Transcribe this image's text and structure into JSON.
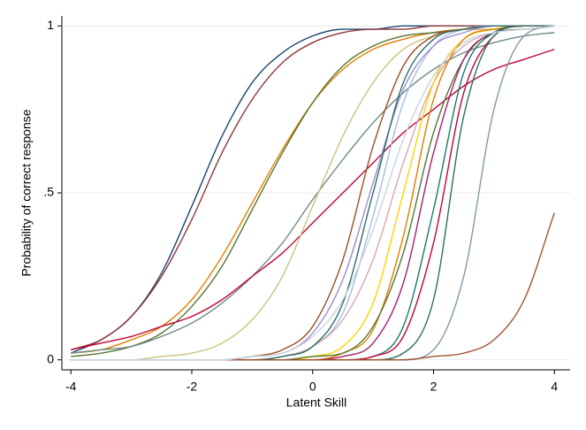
{
  "chart_data": {
    "type": "line",
    "xlabel": "Latent Skill",
    "ylabel": "Probability of correct response",
    "x": [
      -4,
      -3.5,
      -3,
      -2.5,
      -2,
      -1.5,
      -1,
      -0.5,
      0,
      0.5,
      1,
      1.5,
      2,
      2.5,
      3,
      3.5,
      4
    ],
    "xlim": [
      -4.15,
      4.26
    ],
    "ylim": [
      -0.03,
      1.03
    ],
    "xticks": [
      -4,
      -2,
      0,
      2,
      4
    ],
    "yticks": [
      0,
      {
        "value": 0.5,
        "label": ".5"
      },
      1
    ],
    "grid": true,
    "series": [
      {
        "color": "#1a476f",
        "values": [
          0.02,
          0.06,
          0.13,
          0.26,
          0.46,
          0.67,
          0.83,
          0.92,
          0.97,
          0.99,
          0.99,
          1,
          1,
          1,
          1,
          1,
          1
        ]
      },
      {
        "color": "#90353b",
        "values": [
          0.03,
          0.06,
          0.13,
          0.25,
          0.42,
          0.62,
          0.78,
          0.89,
          0.95,
          0.98,
          0.99,
          0.99,
          1,
          1,
          1,
          1,
          1
        ]
      },
      {
        "color": "#e37e00",
        "values": [
          0.02,
          0.03,
          0.06,
          0.1,
          0.18,
          0.31,
          0.47,
          0.63,
          0.77,
          0.87,
          0.93,
          0.96,
          0.98,
          0.99,
          0.99,
          1,
          1
        ]
      },
      {
        "color": "#55752f",
        "values": [
          0.01,
          0.02,
          0.04,
          0.08,
          0.16,
          0.28,
          0.45,
          0.62,
          0.77,
          0.88,
          0.94,
          0.97,
          0.98,
          0.99,
          1,
          1,
          1
        ]
      },
      {
        "color": "#6e8e84",
        "values": [
          0.02,
          0.03,
          0.04,
          0.07,
          0.11,
          0.17,
          0.25,
          0.35,
          0.48,
          0.6,
          0.71,
          0.8,
          0.87,
          0.92,
          0.95,
          0.97,
          0.98
        ]
      },
      {
        "color": "#c10534",
        "values": [
          0.03,
          0.05,
          0.07,
          0.1,
          0.13,
          0.18,
          0.25,
          0.32,
          0.41,
          0.5,
          0.59,
          0.68,
          0.75,
          0.82,
          0.87,
          0.9,
          0.93
        ]
      },
      {
        "color": "#cac27e",
        "values": [
          0,
          0,
          0,
          0.01,
          0.02,
          0.05,
          0.12,
          0.25,
          0.46,
          0.67,
          0.83,
          0.93,
          0.97,
          0.99,
          0.99,
          1,
          1
        ]
      },
      {
        "color": "#9c4e22",
        "values": [
          0,
          0,
          0,
          0,
          0,
          0,
          0.01,
          0.03,
          0.1,
          0.3,
          0.64,
          0.88,
          0.97,
          0.99,
          1,
          1,
          1
        ]
      },
      {
        "color": "#a3bde0",
        "values": [
          0,
          0,
          0,
          0,
          0,
          0,
          0,
          0.01,
          0.04,
          0.14,
          0.43,
          0.77,
          0.94,
          0.99,
          1,
          1,
          1
        ]
      },
      {
        "color": "#9a8fd0",
        "values": [
          0,
          0,
          0,
          0,
          0,
          0,
          0.01,
          0.02,
          0.08,
          0.24,
          0.53,
          0.81,
          0.94,
          0.98,
          1,
          1,
          1
        ]
      },
      {
        "color": "#d8a6b2",
        "values": [
          0,
          0,
          0,
          0,
          0,
          0,
          0,
          0.01,
          0.04,
          0.12,
          0.3,
          0.59,
          0.83,
          0.94,
          0.98,
          0.99,
          1
        ]
      },
      {
        "color": "#2d6d66",
        "values": [
          0,
          0,
          0,
          0,
          0,
          0,
          0,
          0.01,
          0.04,
          0.17,
          0.5,
          0.83,
          0.96,
          0.99,
          1,
          1,
          1
        ]
      },
      {
        "color": "#ffd200",
        "values": [
          0,
          0,
          0,
          0,
          0,
          0,
          0,
          0,
          0.01,
          0.04,
          0.17,
          0.5,
          0.83,
          0.96,
          0.99,
          1,
          1
        ]
      },
      {
        "color": "#e37e00",
        "values": [
          0,
          0,
          0,
          0,
          0,
          0,
          0,
          0,
          0,
          0.02,
          0.09,
          0.37,
          0.78,
          0.96,
          0.99,
          1,
          1
        ]
      },
      {
        "color": "#55752f",
        "values": [
          0,
          0,
          0,
          0,
          0,
          0,
          0,
          0,
          0.01,
          0.02,
          0.1,
          0.32,
          0.68,
          0.9,
          0.98,
          0.99,
          1
        ]
      },
      {
        "color": "#a0206e",
        "values": [
          0,
          0,
          0,
          0,
          0,
          0,
          0,
          0,
          0,
          0.01,
          0.05,
          0.23,
          0.62,
          0.9,
          0.98,
          1,
          1
        ]
      },
      {
        "color": "#1a7a70",
        "values": [
          0,
          0,
          0,
          0,
          0,
          0,
          0,
          0,
          0,
          0,
          0.01,
          0.1,
          0.45,
          0.86,
          0.98,
          1,
          1
        ]
      },
      {
        "color": "#c10534",
        "values": [
          0,
          0,
          0,
          0,
          0,
          0,
          0,
          0,
          0,
          0,
          0.01,
          0.07,
          0.35,
          0.8,
          0.97,
          1,
          1
        ]
      },
      {
        "color": "#2d6d66",
        "values": [
          0,
          0,
          0,
          0,
          0,
          0,
          0,
          0,
          0,
          0,
          0,
          0.02,
          0.18,
          0.73,
          0.97,
          1,
          1
        ]
      },
      {
        "color": "#7f9aaa",
        "values": [
          0,
          0,
          0,
          0,
          0,
          0,
          0,
          0,
          0,
          0,
          0,
          0,
          0.03,
          0.25,
          0.75,
          0.97,
          1
        ]
      },
      {
        "color": "#a0522d",
        "values": [
          0,
          0,
          0,
          0,
          0,
          0,
          0,
          0,
          0,
          0,
          0,
          0,
          0.01,
          0.02,
          0.06,
          0.18,
          0.44
        ]
      },
      {
        "color": "#c8d2dc",
        "values": [
          0,
          0,
          0,
          0,
          0,
          0,
          0.01,
          0.02,
          0.07,
          0.18,
          0.39,
          0.66,
          0.85,
          0.95,
          0.98,
          0.99,
          1
        ]
      }
    ]
  }
}
